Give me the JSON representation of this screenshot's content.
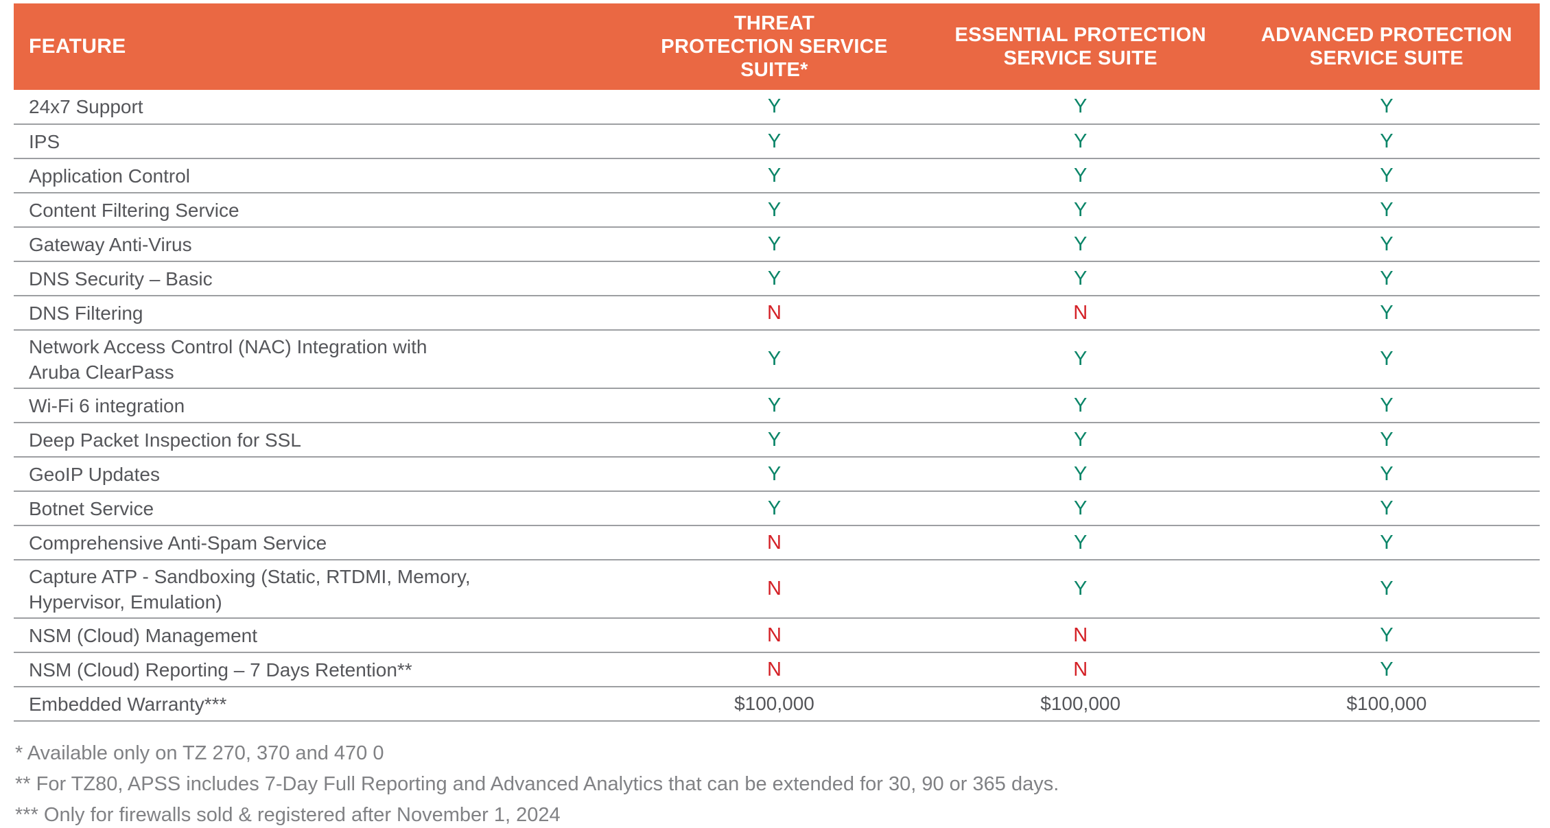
{
  "table": {
    "columns": [
      {
        "label": "FEATURE"
      },
      {
        "label": "THREAT\nPROTECTION SERVICE\nSUITE*"
      },
      {
        "label": "ESSENTIAL PROTECTION\nSERVICE SUITE"
      },
      {
        "label": "ADVANCED PROTECTION\nSERVICE SUITE"
      }
    ],
    "rows": [
      {
        "feature": "24x7 Support",
        "values": [
          "Y",
          "Y",
          "Y"
        ],
        "tall": false
      },
      {
        "feature": "IPS",
        "values": [
          "Y",
          "Y",
          "Y"
        ],
        "tall": false
      },
      {
        "feature": "Application Control",
        "values": [
          "Y",
          "Y",
          "Y"
        ],
        "tall": false
      },
      {
        "feature": "Content Filtering Service",
        "values": [
          "Y",
          "Y",
          "Y"
        ],
        "tall": false
      },
      {
        "feature": "Gateway Anti-Virus",
        "values": [
          "Y",
          "Y",
          "Y"
        ],
        "tall": false
      },
      {
        "feature": "DNS Security – Basic",
        "values": [
          "Y",
          "Y",
          "Y"
        ],
        "tall": false
      },
      {
        "feature": "DNS Filtering",
        "values": [
          "N",
          "N",
          "Y"
        ],
        "tall": false
      },
      {
        "feature": "Network Access Control (NAC) Integration with\nAruba ClearPass",
        "values": [
          "Y",
          "Y",
          "Y"
        ],
        "tall": true
      },
      {
        "feature": "Wi-Fi 6 integration",
        "values": [
          "Y",
          "Y",
          "Y"
        ],
        "tall": false
      },
      {
        "feature": "Deep Packet Inspection for SSL",
        "values": [
          "Y",
          "Y",
          "Y"
        ],
        "tall": false
      },
      {
        "feature": "GeoIP Updates",
        "values": [
          "Y",
          "Y",
          "Y"
        ],
        "tall": false
      },
      {
        "feature": "Botnet Service",
        "values": [
          "Y",
          "Y",
          "Y"
        ],
        "tall": false
      },
      {
        "feature": "Comprehensive Anti-Spam Service",
        "values": [
          "N",
          "Y",
          "Y"
        ],
        "tall": false
      },
      {
        "feature": "Capture ATP -  Sandboxing (Static, RTDMI, Memory,\nHypervisor, Emulation)",
        "values": [
          "N",
          "Y",
          "Y"
        ],
        "tall": true
      },
      {
        "feature": "NSM (Cloud) Management",
        "values": [
          "N",
          "N",
          "Y"
        ],
        "tall": false
      },
      {
        "feature": "NSM (Cloud) Reporting – 7 Days Retention**",
        "values": [
          "N",
          "N",
          "Y"
        ],
        "tall": false
      },
      {
        "feature": "Embedded Warranty***",
        "values": [
          "$100,000",
          "$100,000",
          "$100,000"
        ],
        "tall": false
      }
    ]
  },
  "footnotes": [
    "* Available only on TZ 270, 370 and 470 0",
    "** For TZ80, APSS includes 7-Day Full Reporting and Advanced Analytics that can be extended for 30, 90 or 365 days.",
    "*** Only for firewalls sold & registered after November 1, 2024"
  ],
  "colors": {
    "header_bg": "#EA6843",
    "header_text": "#FFFFFF",
    "yes": "#0B8568",
    "no": "#D42127",
    "row_text": "#55565A",
    "divider": "#9D9FA2",
    "footnote_text": "#808184"
  }
}
